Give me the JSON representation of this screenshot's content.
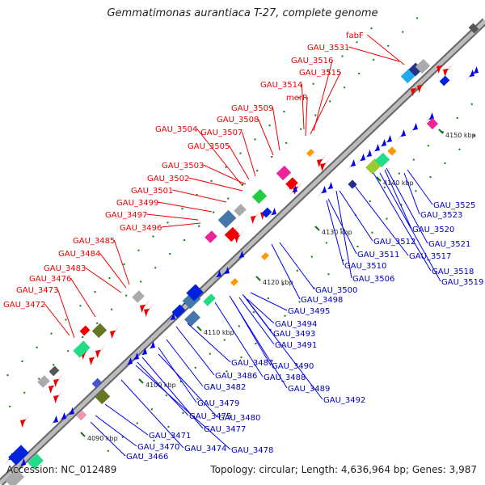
{
  "header": {
    "title": "Gemmatimonas aurantiaca T-27, complete genome"
  },
  "footer": {
    "accession": "Accession: NC_012489",
    "stats": "Topology: circular; Length: 4,636,964 bp; Genes: 3,987"
  },
  "colors": {
    "forward": "#ee0000",
    "reverse": "#0000ee",
    "backbone": "#aaaaaa",
    "tick": "#117711"
  },
  "scale_labels": [
    "4090 kbp",
    "4100 kbp",
    "4110 kbp",
    "4120 kbp",
    "4130 kbp",
    "4140 kbp",
    "4150 kbp"
  ],
  "forward_labels": [
    "GAU_3472",
    "GAU_3473",
    "GAU_3476",
    "GAU_3483",
    "GAU_3484",
    "GAU_3485",
    "GAU_3496",
    "GAU_3497",
    "GAU_3499",
    "GAU_3501",
    "GAU_3502",
    "GAU_3503",
    "GAU_3505",
    "GAU_3504",
    "GAU_3507",
    "GAU_3508",
    "GAU_3509",
    "GAU_3514",
    "merR",
    "GAU_3515",
    "GAU_3516",
    "GAU_3531",
    "fabF"
  ],
  "reverse_labels": [
    "GAU_3466",
    "GAU_3470",
    "GAU_3471",
    "GAU_3474",
    "GAU_3475",
    "GAU_3477",
    "GAU_3478",
    "GAU_3479",
    "GAU_3480",
    "GAU_3482",
    "GAU_3486",
    "GAU_3487",
    "GAU_3488",
    "GAU_3489",
    "GAU_3490",
    "GAU_3491",
    "GAU_3492",
    "GAU_3493",
    "GAU_3494",
    "GAU_3495",
    "GAU_3498",
    "GAU_3500",
    "GAU_3506",
    "GAU_3510",
    "GAU_3511",
    "GAU_3512",
    "GAU_3517",
    "GAU_3518",
    "GAU_3519",
    "GAU_3520",
    "GAU_3521",
    "GAU_3523",
    "GAU_3525"
  ]
}
